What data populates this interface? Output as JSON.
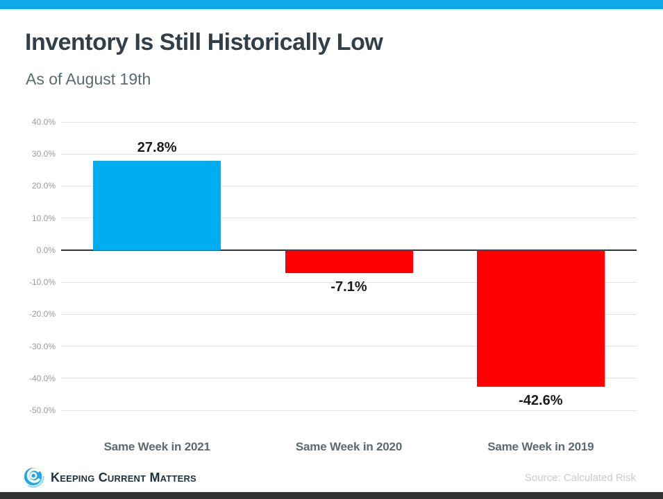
{
  "header": {
    "title": "Inventory Is Still Historically Low",
    "subtitle": "As of August 19th"
  },
  "chart_data": {
    "type": "bar",
    "title": "Inventory Is Still Historically Low",
    "subtitle": "As of August 19th",
    "categories": [
      "Same Week in 2021",
      "Same Week in 2020",
      "Same Week in 2019"
    ],
    "values": [
      27.8,
      -7.1,
      -42.6
    ],
    "data_labels": [
      "27.8%",
      "-7.1%",
      "-42.6%"
    ],
    "bar_colors": [
      "#00AEEF",
      "#FF0000",
      "#FF0000"
    ],
    "ylim": [
      -50,
      40
    ],
    "ytick_step": 10,
    "ytick_labels": [
      "40.0%",
      "30.0%",
      "20.0%",
      "10.0%",
      "0.0%",
      "-10.0%",
      "-20.0%",
      "-30.0%",
      "-40.0%",
      "-50.0%"
    ],
    "grid": true,
    "legend_position": "none",
    "xlabel": "",
    "ylabel": ""
  },
  "footer": {
    "logo_text": "Keeping Current Matters",
    "source": "Source: Calculated Risk"
  },
  "icons": {
    "logo": "kcm-swirl-icon"
  },
  "colors": {
    "top_bar": "#0DA9E8",
    "bottom_bar": "#333333",
    "title_text": "#323E48",
    "subtitle_text": "#5D6A70",
    "category_label": "#5B6970",
    "tick_label": "#9B9B9B",
    "data_label": "#1A1A1A",
    "gridline": "#E3E3E3",
    "zero_line": "#2A3540",
    "bar_positive": "#00AEEF",
    "bar_negative": "#FF0000",
    "logo_blue": "#1CA8E9",
    "logo_swoosh": "#9AD9F3",
    "logo_text": "#22313F",
    "source_text": "#CBCBCB"
  }
}
